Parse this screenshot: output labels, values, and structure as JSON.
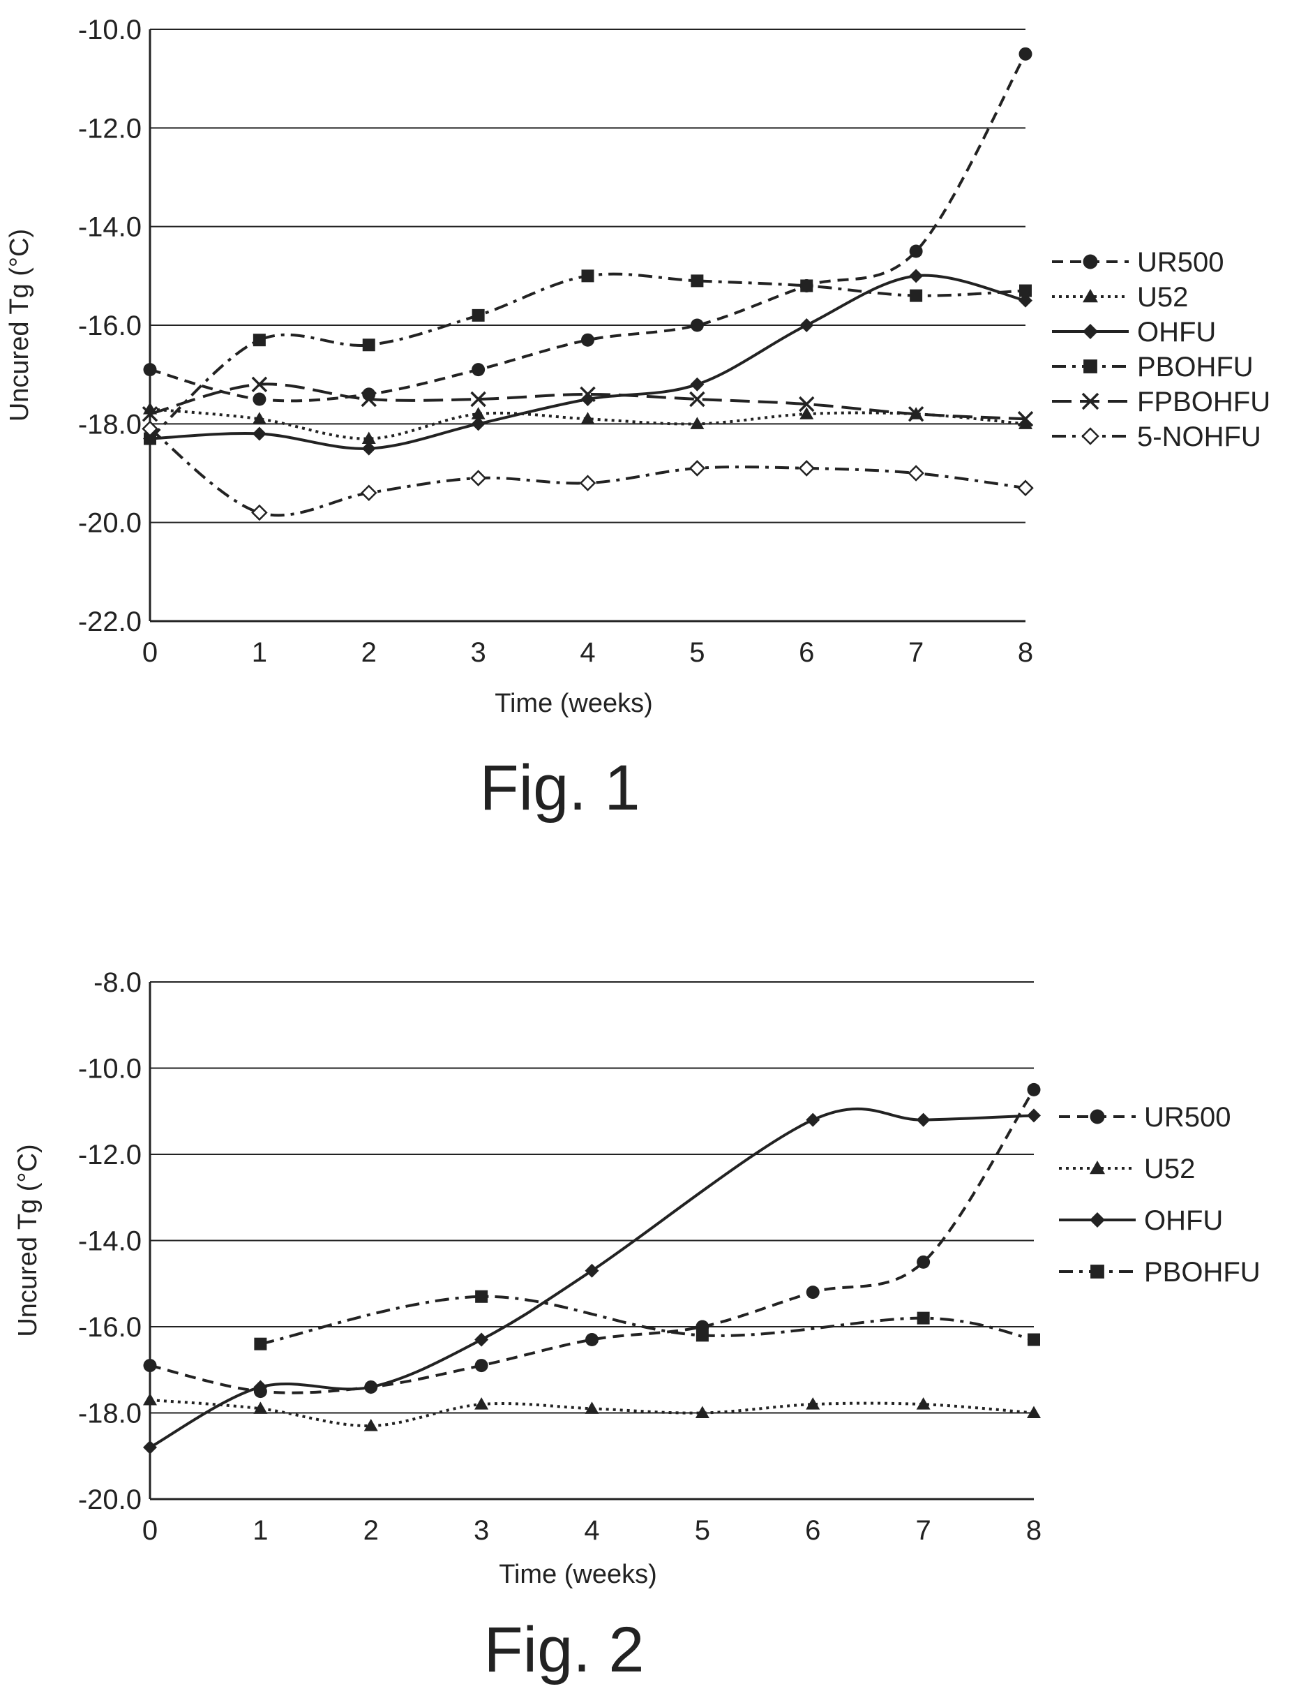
{
  "chart_data": [
    {
      "type": "line",
      "caption": "Fig. 1",
      "xlabel": "Time (weeks)",
      "ylabel": "Uncured Tg (°C)",
      "xlim": [
        0,
        8
      ],
      "ylim": [
        -22.0,
        -10.0
      ],
      "x_ticks": [
        "0",
        "1",
        "2",
        "3",
        "4",
        "5",
        "6",
        "7",
        "8"
      ],
      "y_ticks": [
        "-10.0",
        "-12.0",
        "-14.0",
        "-16.0",
        "-18.0",
        "-20.0",
        "-22.0"
      ],
      "grid": "horizontal",
      "legend_position": "right",
      "x": [
        0,
        1,
        2,
        3,
        4,
        5,
        6,
        7,
        8
      ],
      "series": [
        {
          "name": "UR500",
          "marker": "circle",
          "dash": "dashed",
          "values": [
            -16.9,
            -17.5,
            -17.4,
            -16.9,
            -16.3,
            -16.0,
            -15.2,
            -14.5,
            -10.5
          ]
        },
        {
          "name": "U52",
          "marker": "triangle",
          "dash": "dotted",
          "values": [
            -17.7,
            -17.9,
            -18.3,
            -17.8,
            -17.9,
            -18.0,
            -17.8,
            -17.8,
            -18.0
          ]
        },
        {
          "name": "OHFU",
          "marker": "diamond",
          "dash": "solid",
          "values": [
            -18.3,
            -18.2,
            -18.5,
            -18.0,
            -17.5,
            -17.2,
            -16.0,
            -15.0,
            -15.5
          ]
        },
        {
          "name": "PBOHFU",
          "marker": "square",
          "dash": "dashdot",
          "values": [
            -18.3,
            -16.3,
            -16.4,
            -15.8,
            -15.0,
            -15.1,
            -15.2,
            -15.4,
            -15.3
          ]
        },
        {
          "name": "FPBOHFU",
          "marker": "x",
          "dash": "longdash",
          "values": [
            -17.8,
            -17.2,
            -17.5,
            -17.5,
            -17.4,
            -17.5,
            -17.6,
            -17.8,
            -17.9
          ]
        },
        {
          "name": "5-NOHFU",
          "marker": "open-diamond",
          "dash": "dashdot",
          "values": [
            -18.1,
            -19.8,
            -19.4,
            -19.1,
            -19.2,
            -18.9,
            -18.9,
            -19.0,
            -19.3
          ]
        }
      ]
    },
    {
      "type": "line",
      "caption": "Fig. 2",
      "xlabel": "Time (weeks)",
      "ylabel": "Uncured Tg (°C)",
      "xlim": [
        0,
        8
      ],
      "ylim": [
        -20.0,
        -8.0
      ],
      "x_ticks": [
        "0",
        "1",
        "2",
        "3",
        "4",
        "5",
        "6",
        "7",
        "8"
      ],
      "y_ticks": [
        "-8.0",
        "-10.0",
        "-12.0",
        "-14.0",
        "-16.0",
        "-18.0",
        "-20.0"
      ],
      "grid": "horizontal",
      "legend_position": "right",
      "x": [
        0,
        1,
        2,
        3,
        4,
        5,
        6,
        7,
        8
      ],
      "series": [
        {
          "name": "UR500",
          "marker": "circle",
          "dash": "dashed",
          "values": [
            -16.9,
            -17.5,
            -17.4,
            -16.9,
            -16.3,
            -16.0,
            -15.2,
            -14.5,
            -10.5
          ]
        },
        {
          "name": "U52",
          "marker": "triangle",
          "dash": "dotted",
          "values": [
            -17.7,
            -17.9,
            -18.3,
            -17.8,
            -17.9,
            -18.0,
            -17.8,
            -17.8,
            -18.0
          ]
        },
        {
          "name": "OHFU",
          "marker": "diamond",
          "dash": "solid",
          "values": [
            -18.8,
            -17.4,
            -17.4,
            -16.3,
            -14.7,
            null,
            -11.2,
            -11.2,
            -11.1
          ]
        },
        {
          "name": "PBOHFU",
          "marker": "square",
          "dash": "dashdot",
          "values": [
            null,
            -16.4,
            null,
            -15.3,
            null,
            -16.2,
            null,
            -15.8,
            -16.3
          ]
        }
      ]
    }
  ]
}
